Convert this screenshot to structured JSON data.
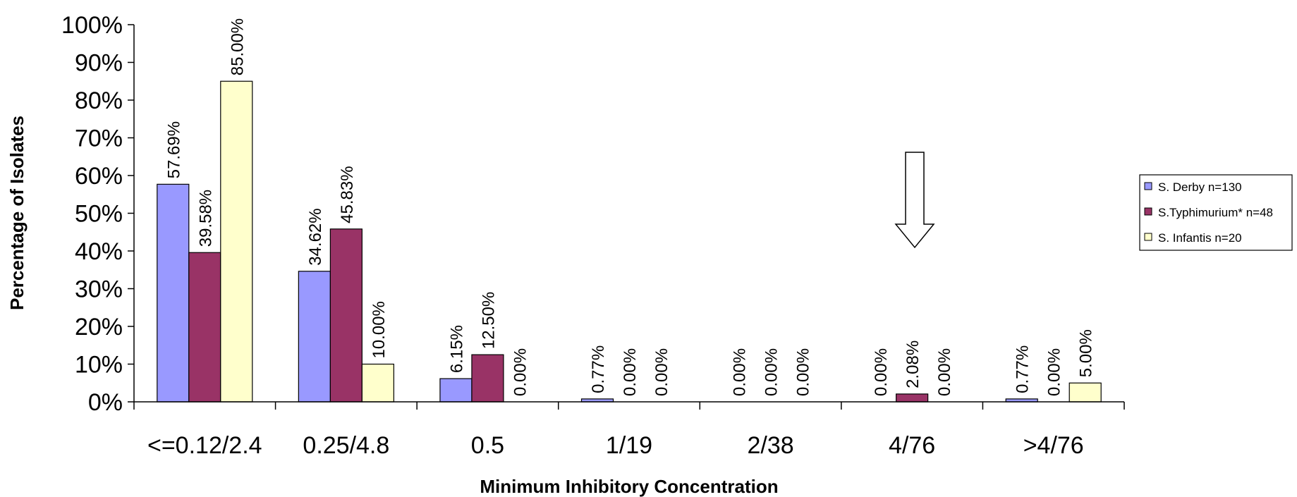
{
  "chart_data": {
    "type": "bar",
    "xlabel": "Minimum Inhibitory Concentration",
    "ylabel": "Percentage of Isolates",
    "ylim": [
      0,
      100
    ],
    "yticks": [
      "0%",
      "10%",
      "20%",
      "30%",
      "40%",
      "50%",
      "60%",
      "70%",
      "80%",
      "90%",
      "100%"
    ],
    "categories": [
      "<=0.12/2.4",
      "0.25/4.8",
      "0.5",
      "1/19",
      "2/38",
      "4/76",
      ">4/76"
    ],
    "series": [
      {
        "name": "S. Derby n=130",
        "color": "#9999ff",
        "values": [
          57.69,
          34.62,
          6.15,
          0.77,
          0.0,
          0.0,
          0.77
        ],
        "labels": [
          "57.69%",
          "34.62%",
          "6.15%",
          "0.77%",
          "0.00%",
          "0.00%",
          "0.77%"
        ]
      },
      {
        "name": "S.Typhimurium* n=48",
        "color": "#993366",
        "values": [
          39.58,
          45.83,
          12.5,
          0.0,
          0.0,
          2.08,
          0.0
        ],
        "labels": [
          "39.58%",
          "45.83%",
          "12.50%",
          "0.00%",
          "0.00%",
          "2.08%",
          "0.00%"
        ]
      },
      {
        "name": "S. Infantis n=20",
        "color": "#ffffcc",
        "values": [
          85.0,
          10.0,
          0.0,
          0.0,
          0.0,
          0.0,
          5.0
        ],
        "labels": [
          "85.00%",
          "10.00%",
          "0.00%",
          "0.00%",
          "0.00%",
          "0.00%",
          "5.00%"
        ]
      }
    ],
    "legend_position": "right",
    "annotation": {
      "type": "arrow-down",
      "category": "4/76"
    },
    "grid": false
  }
}
